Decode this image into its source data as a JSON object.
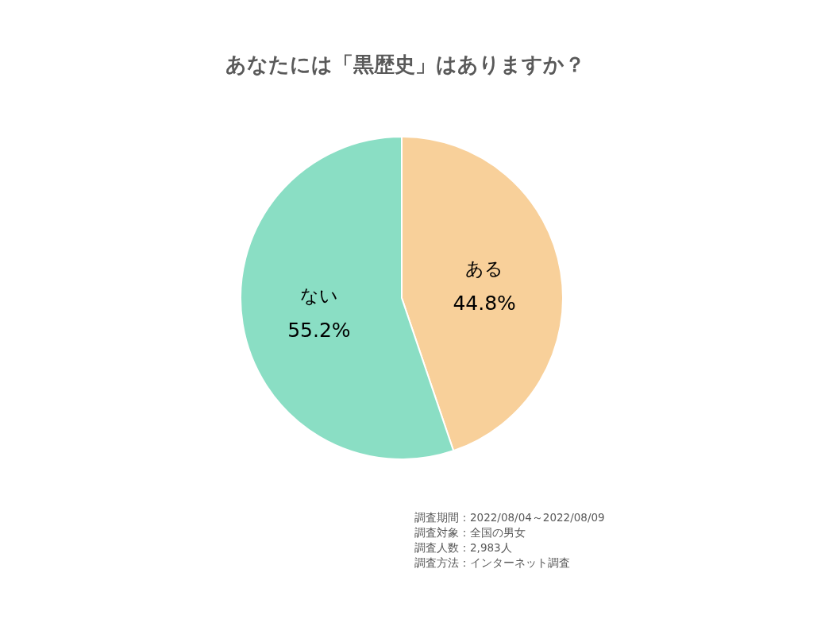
{
  "chart_data": {
    "type": "pie",
    "title": "あなたには「黒歴史」はありますか？",
    "categories": [
      "ある",
      "ない"
    ],
    "values": [
      44.8,
      55.2
    ],
    "colors": [
      "#f8d09a",
      "#8adec4"
    ],
    "value_labels": [
      "44.8%",
      "55.2%"
    ],
    "annotations": [
      "調査期間：2022/08/04～2022/08/09",
      "調査対象：全国の男女",
      "調査人数：2,983人",
      "調査方法：インターネット調査"
    ]
  }
}
